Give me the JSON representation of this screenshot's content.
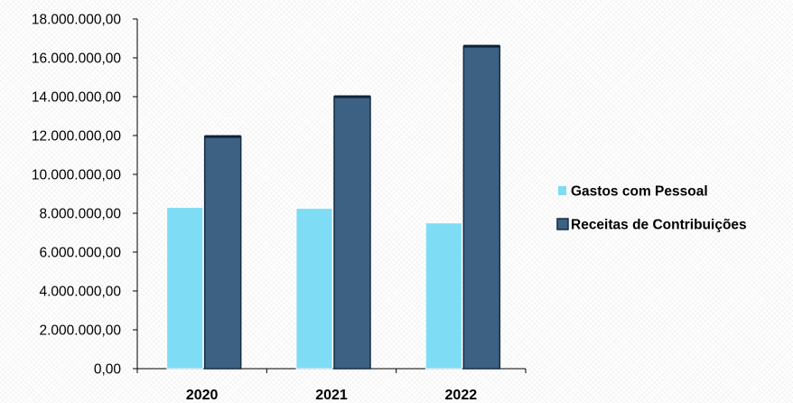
{
  "chart_data": {
    "type": "bar",
    "categories": [
      "2020",
      "2021",
      "2022"
    ],
    "series": [
      {
        "name": "Gastos com Pessoal",
        "values": [
          8300000,
          8250000,
          7500000
        ],
        "color": "#7fdcf5"
      },
      {
        "name": "Receitas de Contribuições",
        "values": [
          11950000,
          14000000,
          16600000
        ],
        "color": "#3c6183"
      }
    ],
    "yticks": [
      "0,00",
      "2.000.000,00",
      "4.000.000,00",
      "6.000.000,00",
      "8.000.000,00",
      "10.000.000,00",
      "12.000.000,00",
      "14.000.000,00",
      "16.000.000,00",
      "18.000.000,00"
    ],
    "ylim": [
      0,
      18000000
    ],
    "grid": false,
    "legend": "right",
    "title": "",
    "xlabel": "",
    "ylabel": ""
  }
}
